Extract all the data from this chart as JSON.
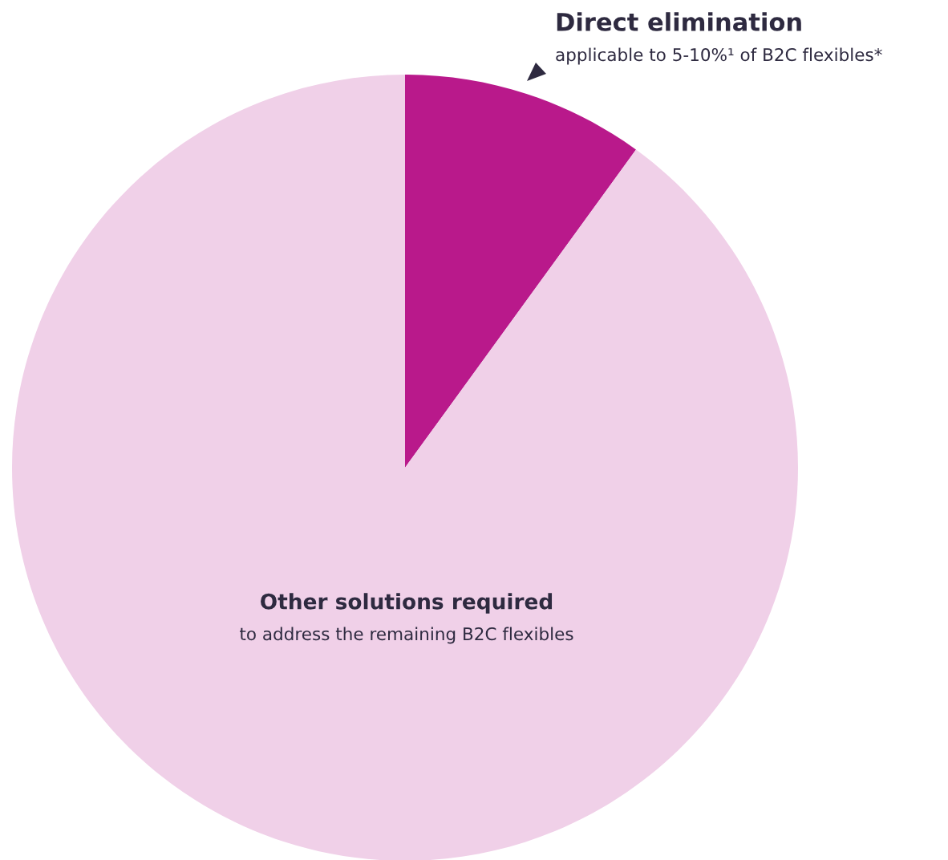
{
  "chart_data": {
    "type": "pie",
    "categories": [
      "Direct elimination",
      "Other solutions required"
    ],
    "values": [
      10,
      90
    ],
    "colors": [
      "#b9198b",
      "#f0d0e8"
    ],
    "annotations": [
      "applicable to 5-10%¹ of B2C flexibles*",
      "to address the remaining B2C flexibles"
    ]
  }
}
